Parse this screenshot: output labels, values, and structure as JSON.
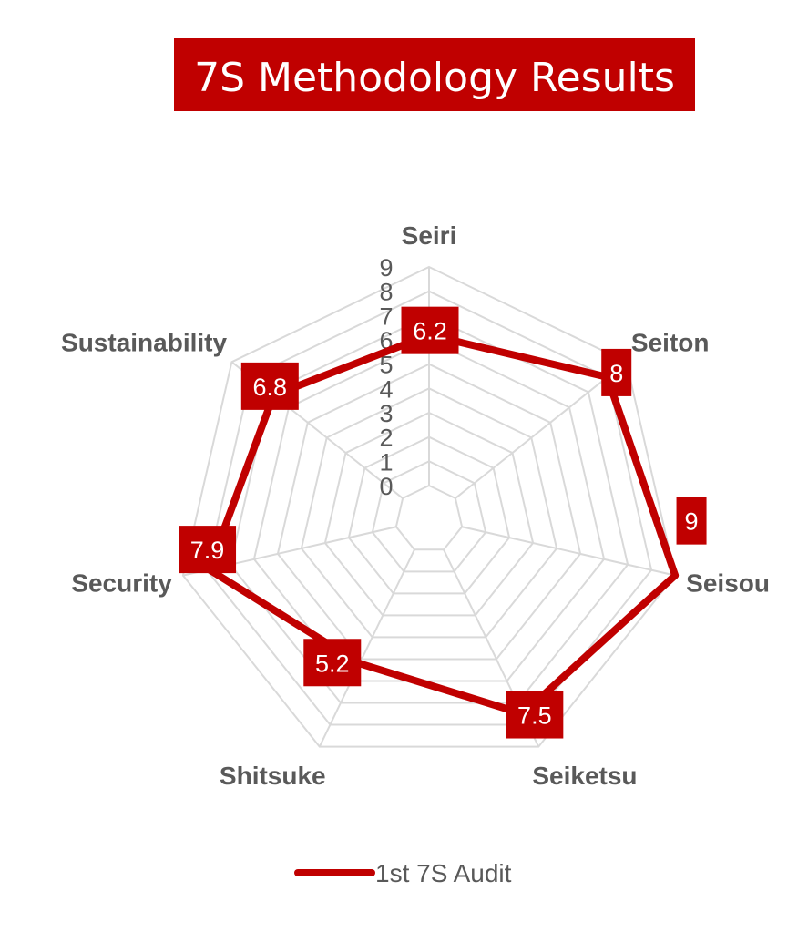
{
  "colors": {
    "accent": "#c00000",
    "grid": "#d9d9d9",
    "text": "#595959",
    "background": "#ffffff"
  },
  "chart_data": {
    "type": "radar",
    "title": "7S Methodology Results",
    "categories": [
      "Seiri",
      "Seiton",
      "Seisou",
      "Seiketsu",
      "Shitsuke",
      "Security",
      "Sustainability"
    ],
    "series": [
      {
        "name": "1st 7S Audit",
        "values": [
          6.2,
          8,
          9,
          7.5,
          5.2,
          7.9,
          6.8
        ],
        "color": "#c00000"
      }
    ],
    "value_labels": [
      "6.2",
      "8",
      "9",
      "7.5",
      "5.2",
      "7.9",
      "6.8"
    ],
    "r_range": [
      0,
      9
    ],
    "r_ticks": [
      "0",
      "1",
      "2",
      "3",
      "4",
      "5",
      "6",
      "7",
      "8",
      "9"
    ],
    "grid": true,
    "legend_position": "bottom"
  }
}
